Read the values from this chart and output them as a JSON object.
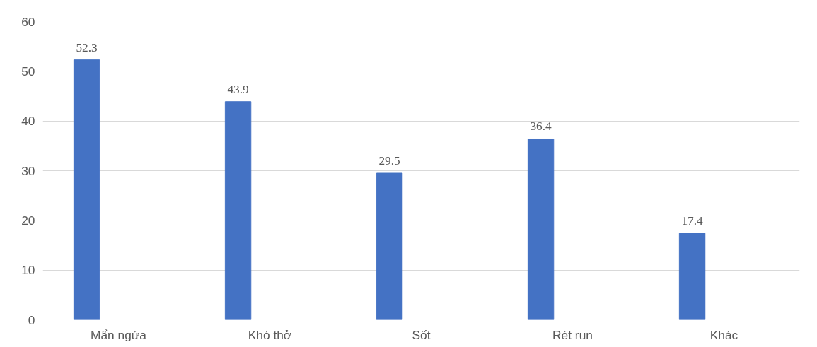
{
  "chart_data": {
    "type": "bar",
    "categories": [
      "Mẩn ngứa",
      "Khó thở",
      "Sốt",
      "Rét run",
      "Khác"
    ],
    "values": [
      52.3,
      43.9,
      29.5,
      36.4,
      17.4
    ],
    "color": "#4472c4",
    "ylim": [
      0,
      60
    ],
    "yticks": [
      0,
      10,
      20,
      30,
      40,
      50,
      60
    ],
    "grid": "y",
    "data_labels": true
  }
}
